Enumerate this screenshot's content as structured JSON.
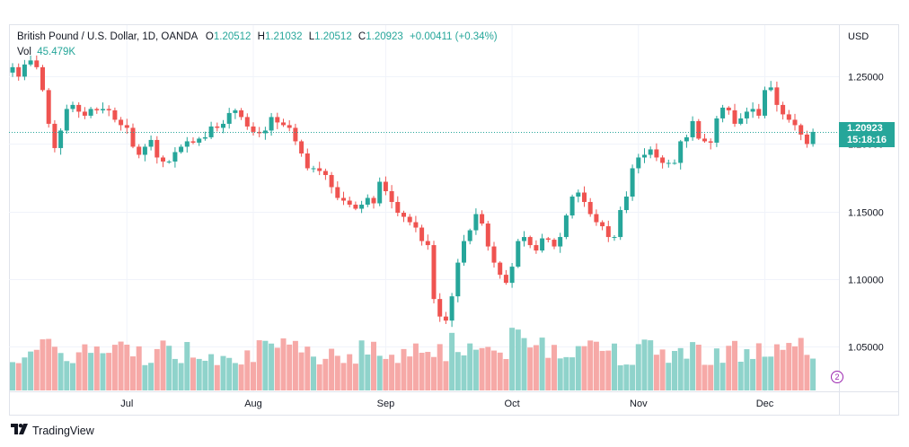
{
  "legend": {
    "symbol": "British Pound / U.S. Dollar, 1D, OANDA",
    "o_label": "O",
    "o_value": "1.20512",
    "h_label": "H",
    "h_value": "1.21032",
    "l_label": "L",
    "l_value": "1.20512",
    "c_label": "C",
    "c_value": "1.20923",
    "change": "+0.00411 (+0.34%)",
    "vol_label": "Vol",
    "vol_value": "45.479K"
  },
  "currency": "USD",
  "price_badge": {
    "price": "1.20923",
    "countdown": "15:18:16"
  },
  "footer": {
    "brand": "TradingView"
  },
  "colors": {
    "up": "#26a69a",
    "down": "#ef5350",
    "up_volume": "#8fd3cb",
    "down_volume": "#f6a9a7",
    "grid": "#f0f3fa"
  },
  "chart_data": {
    "type": "candlestick",
    "y_axis": {
      "ticks": [
        1.05,
        1.1,
        1.15,
        1.2,
        1.25
      ],
      "tick_labels": [
        "1.05000",
        "1.10000",
        "1.15000",
        "1.20000",
        "1.25000"
      ],
      "range": [
        1.0165,
        1.2882
      ]
    },
    "x_axis": {
      "labels": [
        {
          "label": "Jul",
          "index": 19
        },
        {
          "label": "Aug",
          "index": 40
        },
        {
          "label": "Sep",
          "index": 62
        },
        {
          "label": "Oct",
          "index": 83
        },
        {
          "label": "Nov",
          "index": 104
        },
        {
          "label": "Dec",
          "index": 125
        }
      ]
    },
    "last_price": 1.20923,
    "close": [
      1.257,
      1.25,
      1.259,
      1.262,
      1.257,
      1.24,
      1.215,
      1.197,
      1.21,
      1.226,
      1.229,
      1.224,
      1.221,
      1.226,
      1.225,
      1.226,
      1.225,
      1.218,
      1.214,
      1.212,
      1.198,
      1.192,
      1.198,
      1.203,
      1.19,
      1.187,
      1.187,
      1.194,
      1.198,
      1.202,
      1.201,
      1.204,
      1.205,
      1.213,
      1.212,
      1.215,
      1.223,
      1.225,
      1.22,
      1.213,
      1.209,
      1.208,
      1.21,
      1.22,
      1.216,
      1.214,
      1.212,
      1.202,
      1.193,
      1.182,
      1.182,
      1.18,
      1.177,
      1.168,
      1.16,
      1.158,
      1.155,
      1.152,
      1.155,
      1.16,
      1.156,
      1.172,
      1.165,
      1.157,
      1.149,
      1.146,
      1.142,
      1.138,
      1.128,
      1.125,
      1.085,
      1.072,
      1.069,
      1.087,
      1.112,
      1.128,
      1.136,
      1.148,
      1.141,
      1.124,
      1.112,
      1.103,
      1.097,
      1.109,
      1.128,
      1.131,
      1.125,
      1.121,
      1.13,
      1.129,
      1.124,
      1.131,
      1.147,
      1.161,
      1.164,
      1.157,
      1.148,
      1.142,
      1.139,
      1.131,
      1.131,
      1.151,
      1.161,
      1.182,
      1.19,
      1.192,
      1.196,
      1.19,
      1.186,
      1.186,
      1.186,
      1.202,
      1.205,
      1.217,
      1.204,
      1.202,
      1.201,
      1.219,
      1.227,
      1.225,
      1.215,
      1.219,
      1.224,
      1.226,
      1.221,
      1.24,
      1.242,
      1.229,
      1.222,
      1.218,
      1.214,
      1.207,
      1.2,
      1.209
    ]
  }
}
